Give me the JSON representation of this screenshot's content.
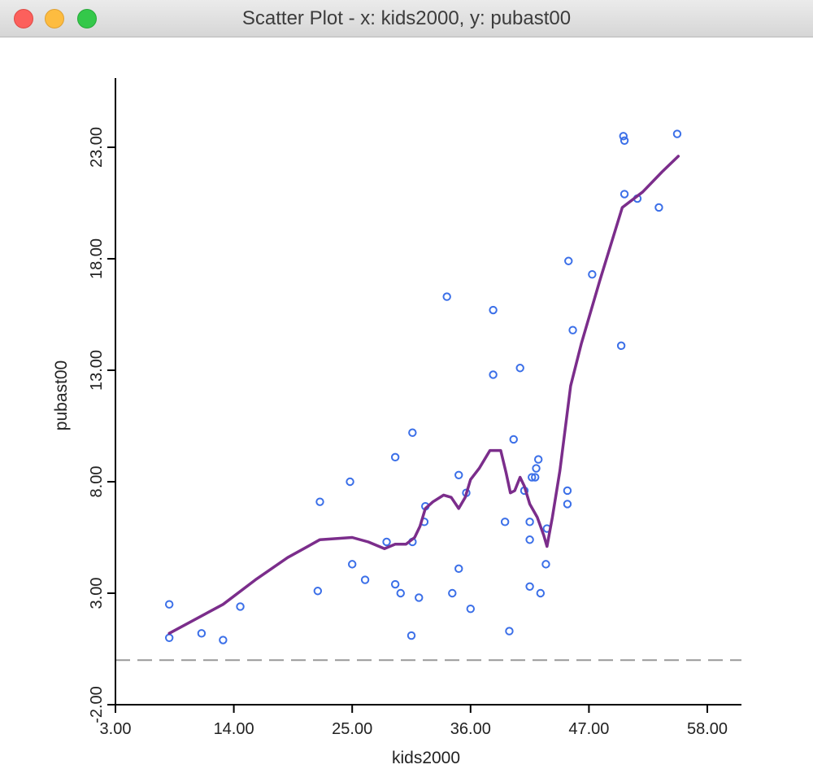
{
  "window": {
    "title": "Scatter Plot - x: kids2000, y: pubast00"
  },
  "chart_data": {
    "type": "scatter",
    "xlabel": "kids2000",
    "ylabel": "pubast00",
    "xlim": [
      3.0,
      61.5
    ],
    "ylim": [
      -2.0,
      26.0
    ],
    "x_ticks": [
      "3.00",
      "14.00",
      "25.00",
      "36.00",
      "47.00",
      "58.00"
    ],
    "y_ticks": [
      "-2.00",
      "3.00",
      "8.00",
      "13.00",
      "18.00",
      "23.00"
    ],
    "reference_line_y": 0.0,
    "colors": {
      "points": "#3b6fe8",
      "smoother": "#7b2d8b",
      "reference_line": "#999999",
      "axes": "#000000"
    },
    "points": [
      {
        "x": 8.0,
        "y": 2.5
      },
      {
        "x": 8.0,
        "y": 1.0
      },
      {
        "x": 11.0,
        "y": 1.2
      },
      {
        "x": 13.0,
        "y": 0.9
      },
      {
        "x": 14.6,
        "y": 2.4
      },
      {
        "x": 21.8,
        "y": 3.1
      },
      {
        "x": 22.0,
        "y": 7.1
      },
      {
        "x": 24.8,
        "y": 8.0
      },
      {
        "x": 25.0,
        "y": 4.3
      },
      {
        "x": 26.2,
        "y": 3.6
      },
      {
        "x": 28.2,
        "y": 5.3
      },
      {
        "x": 29.0,
        "y": 9.1
      },
      {
        "x": 29.0,
        "y": 3.4
      },
      {
        "x": 29.5,
        "y": 3.0
      },
      {
        "x": 30.5,
        "y": 1.1
      },
      {
        "x": 30.6,
        "y": 5.3
      },
      {
        "x": 30.6,
        "y": 10.2
      },
      {
        "x": 31.2,
        "y": 2.8
      },
      {
        "x": 31.7,
        "y": 6.2
      },
      {
        "x": 31.8,
        "y": 6.9
      },
      {
        "x": 33.8,
        "y": 16.3
      },
      {
        "x": 34.3,
        "y": 3.0
      },
      {
        "x": 34.9,
        "y": 8.3
      },
      {
        "x": 34.9,
        "y": 4.1
      },
      {
        "x": 35.6,
        "y": 7.5
      },
      {
        "x": 36.0,
        "y": 2.3
      },
      {
        "x": 38.1,
        "y": 15.7
      },
      {
        "x": 38.1,
        "y": 12.8
      },
      {
        "x": 39.2,
        "y": 6.2
      },
      {
        "x": 39.6,
        "y": 1.3
      },
      {
        "x": 40.0,
        "y": 9.9
      },
      {
        "x": 40.6,
        "y": 13.1
      },
      {
        "x": 41.0,
        "y": 7.6
      },
      {
        "x": 41.5,
        "y": 6.2
      },
      {
        "x": 41.5,
        "y": 5.4
      },
      {
        "x": 41.5,
        "y": 3.3
      },
      {
        "x": 41.7,
        "y": 8.2
      },
      {
        "x": 42.0,
        "y": 8.2
      },
      {
        "x": 42.1,
        "y": 8.6
      },
      {
        "x": 42.3,
        "y": 9.0
      },
      {
        "x": 42.5,
        "y": 3.0
      },
      {
        "x": 43.0,
        "y": 4.3
      },
      {
        "x": 43.1,
        "y": 5.9
      },
      {
        "x": 45.0,
        "y": 7.6
      },
      {
        "x": 45.0,
        "y": 7.0
      },
      {
        "x": 45.1,
        "y": 17.9
      },
      {
        "x": 45.5,
        "y": 14.8
      },
      {
        "x": 47.3,
        "y": 17.3
      },
      {
        "x": 50.0,
        "y": 14.1
      },
      {
        "x": 50.2,
        "y": 23.5
      },
      {
        "x": 50.3,
        "y": 23.3
      },
      {
        "x": 50.3,
        "y": 20.9
      },
      {
        "x": 51.5,
        "y": 20.7
      },
      {
        "x": 53.5,
        "y": 20.3
      },
      {
        "x": 55.2,
        "y": 23.6
      }
    ],
    "smoother": [
      {
        "x": 8.0,
        "y": 1.2
      },
      {
        "x": 13.0,
        "y": 2.5
      },
      {
        "x": 16.0,
        "y": 3.6
      },
      {
        "x": 19.0,
        "y": 4.6
      },
      {
        "x": 22.0,
        "y": 5.4
      },
      {
        "x": 25.0,
        "y": 5.5
      },
      {
        "x": 26.5,
        "y": 5.3
      },
      {
        "x": 28.0,
        "y": 5.0
      },
      {
        "x": 29.0,
        "y": 5.2
      },
      {
        "x": 30.0,
        "y": 5.2
      },
      {
        "x": 30.8,
        "y": 5.5
      },
      {
        "x": 31.3,
        "y": 6.0
      },
      {
        "x": 31.8,
        "y": 6.8
      },
      {
        "x": 32.5,
        "y": 7.1
      },
      {
        "x": 33.5,
        "y": 7.4
      },
      {
        "x": 34.2,
        "y": 7.3
      },
      {
        "x": 34.9,
        "y": 6.8
      },
      {
        "x": 35.5,
        "y": 7.3
      },
      {
        "x": 36.0,
        "y": 8.1
      },
      {
        "x": 36.8,
        "y": 8.6
      },
      {
        "x": 37.8,
        "y": 9.4
      },
      {
        "x": 38.8,
        "y": 9.4
      },
      {
        "x": 39.3,
        "y": 8.4
      },
      {
        "x": 39.7,
        "y": 7.5
      },
      {
        "x": 40.1,
        "y": 7.6
      },
      {
        "x": 40.6,
        "y": 8.2
      },
      {
        "x": 41.0,
        "y": 7.8
      },
      {
        "x": 41.5,
        "y": 7.0
      },
      {
        "x": 42.2,
        "y": 6.4
      },
      {
        "x": 42.8,
        "y": 5.6
      },
      {
        "x": 43.1,
        "y": 5.1
      },
      {
        "x": 43.6,
        "y": 6.4
      },
      {
        "x": 44.3,
        "y": 8.5
      },
      {
        "x": 45.3,
        "y": 12.3
      },
      {
        "x": 46.3,
        "y": 14.2
      },
      {
        "x": 48.0,
        "y": 17.0
      },
      {
        "x": 50.1,
        "y": 20.3
      },
      {
        "x": 52.0,
        "y": 21.0
      },
      {
        "x": 53.8,
        "y": 21.9
      },
      {
        "x": 55.3,
        "y": 22.6
      }
    ]
  }
}
